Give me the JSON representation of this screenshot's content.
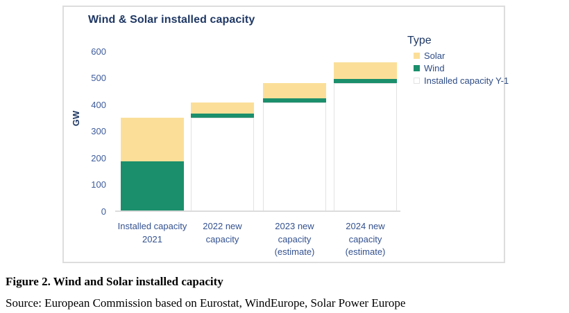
{
  "chart_data": {
    "type": "bar",
    "stacked": true,
    "title": "Wind & Solar installed capacity",
    "ylabel": "GW",
    "xlabel": "",
    "ylim": [
      0,
      600
    ],
    "yticks": [
      0,
      100,
      200,
      300,
      400,
      500,
      600
    ],
    "grid": false,
    "categories": [
      "Installed capacity\n2021",
      "2022 new\ncapacity",
      "2023 new\ncapacity\n(estimate)",
      "2024 new\ncapacity\n(estimate)"
    ],
    "series": [
      {
        "name": "Installed capacity Y-1",
        "color": "#ffffff",
        "outlined": true,
        "values": [
          0,
          352,
          408,
          481
        ]
      },
      {
        "name": "Wind",
        "color": "#1b8f6b",
        "outlined": false,
        "values": [
          187,
          16,
          16,
          16
        ]
      },
      {
        "name": "Solar",
        "color": "#fbdf99",
        "outlined": false,
        "values": [
          165,
          40,
          57,
          64
        ]
      }
    ],
    "totals": [
      352,
      408,
      481,
      561
    ],
    "legend": {
      "title": "Type",
      "position": "right",
      "entries": [
        "Solar",
        "Wind",
        "Installed capacity Y-1"
      ]
    }
  },
  "caption": "Figure 2. Wind and Solar installed capacity",
  "source": "Source: European Commission based on Eurostat, WindEurope, Solar Power Europe",
  "colors": {
    "title_text": "#1f3864",
    "tick_text": "#3d5b9b",
    "category_text": "#33518f",
    "legend_text": "#2e4c85",
    "panel_border": "#dddddd",
    "axis_line": "#dcdcdc",
    "solar": "#fbdf99",
    "wind": "#1b8f6b",
    "installed_y1_fill": "#ffffff",
    "installed_y1_border": "#e2e2e2"
  }
}
